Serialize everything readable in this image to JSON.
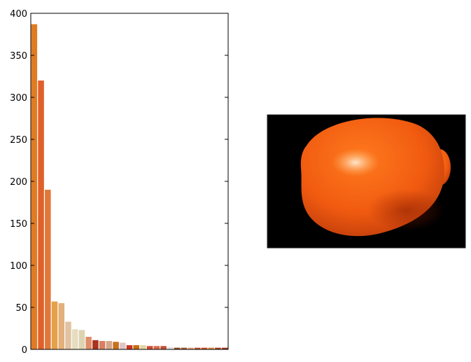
{
  "chart_data": [
    {
      "type": "bar",
      "title": "",
      "xlabel": "",
      "ylabel": "",
      "ylim": [
        0,
        400
      ],
      "yticks": [
        0,
        50,
        100,
        150,
        200,
        250,
        300,
        350,
        400
      ],
      "grid": false,
      "x_tick_labels_visible": false,
      "values": [
        387,
        320,
        190,
        57,
        55,
        33,
        24,
        23,
        15,
        11,
        10,
        10,
        9,
        8,
        5,
        5,
        5,
        4,
        4,
        4,
        3,
        2,
        2,
        2,
        2,
        2,
        2,
        2,
        2
      ],
      "bar_colors": [
        "#e07b22",
        "#e0602a",
        "#e0783a",
        "#e5a14a",
        "#e3b07a",
        "#e2c2a2",
        "#e6dcbf",
        "#ddd3b0",
        "#e08e68",
        "#a8331e",
        "#d98060",
        "#d4a68a",
        "#c9701e",
        "#e0c4c6",
        "#c8341e",
        "#c96a10",
        "#e2d4a4",
        "#d14c2c",
        "#d76a4a",
        "#c2503a",
        "#e6e2de",
        "#8b4a1e",
        "#a9572e",
        "#e3a070",
        "#c0502a",
        "#d04a1c",
        "#d2893a",
        "#b03c1c",
        "#9c3a1a"
      ]
    }
  ],
  "image": {
    "subject": "orange-fruit-photo",
    "background_color": "#000000",
    "fruit_colors": [
      "#ff7a1e",
      "#f05a10",
      "#b8380a"
    ]
  }
}
